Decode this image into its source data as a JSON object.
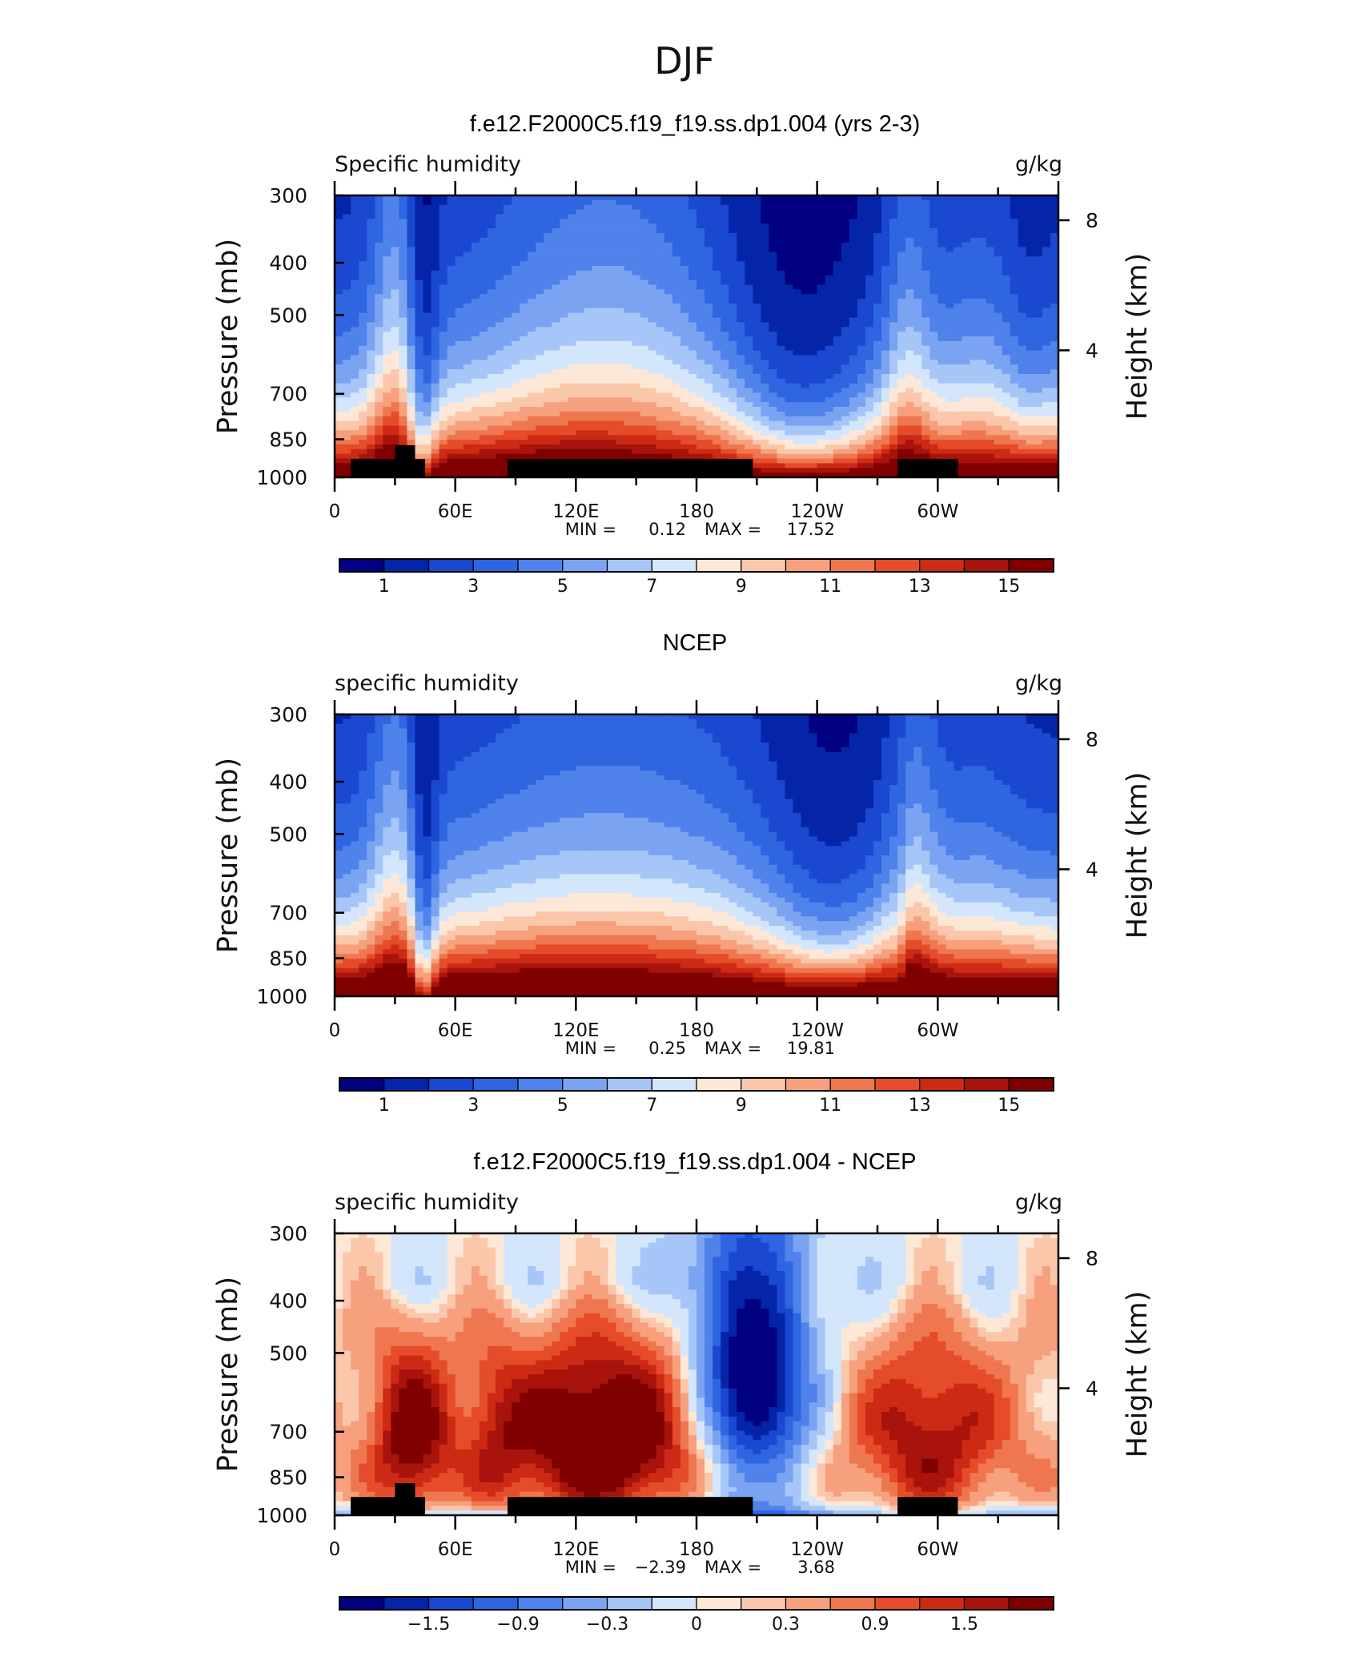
{
  "page_title": "DJF",
  "chart_data": [
    {
      "type": "heatmap",
      "title": "f.e12.F2000C5.f19_f19.ss.dp1.004 (yrs 2-3)",
      "subtitle_left": "Specific humidity",
      "units": "g/kg",
      "ylabel_left": "Pressure (mb)",
      "ylabel_right": "Height (km)",
      "pressure_ticks": [
        "300",
        "400",
        "500",
        "700",
        "850",
        "1000"
      ],
      "height_ticks": [
        "8",
        "4"
      ],
      "lon_ticks": [
        "0",
        "60E",
        "120E",
        "180",
        "120W",
        "60W"
      ],
      "stats": {
        "min_label": "MIN =",
        "min": "0.12",
        "max_label": "MAX =",
        "max": "17.52"
      },
      "colorbar_labels": [
        "1",
        "3",
        "5",
        "7",
        "9",
        "11",
        "13",
        "15"
      ],
      "palette": [
        "#000080",
        "#0425a8",
        "#1a48d0",
        "#2f65e0",
        "#4f82ea",
        "#7aa4f2",
        "#a6c6f8",
        "#d4e6fb",
        "#fde8d8",
        "#fbc7ab",
        "#f6a07e",
        "#ef7750",
        "#e54c2a",
        "#cc2a14",
        "#a8130c",
        "#800000"
      ],
      "levels": [
        1,
        2,
        3,
        4,
        5,
        6,
        7,
        8,
        9,
        10,
        11,
        12,
        13,
        14,
        15
      ],
      "field": "model",
      "topography": true
    },
    {
      "type": "heatmap",
      "title": "NCEP",
      "subtitle_left": "specific humidity",
      "units": "g/kg",
      "ylabel_left": "Pressure (mb)",
      "ylabel_right": "Height (km)",
      "pressure_ticks": [
        "300",
        "400",
        "500",
        "700",
        "850",
        "1000"
      ],
      "height_ticks": [
        "8",
        "4"
      ],
      "lon_ticks": [
        "0",
        "60E",
        "120E",
        "180",
        "120W",
        "60W"
      ],
      "stats": {
        "min_label": "MIN =",
        "min": "0.25",
        "max_label": "MAX =",
        "max": "19.81"
      },
      "colorbar_labels": [
        "1",
        "3",
        "5",
        "7",
        "9",
        "11",
        "13",
        "15"
      ],
      "palette": [
        "#000080",
        "#0425a8",
        "#1a48d0",
        "#2f65e0",
        "#4f82ea",
        "#7aa4f2",
        "#a6c6f8",
        "#d4e6fb",
        "#fde8d8",
        "#fbc7ab",
        "#f6a07e",
        "#ef7750",
        "#e54c2a",
        "#cc2a14",
        "#a8130c",
        "#800000"
      ],
      "levels": [
        1,
        2,
        3,
        4,
        5,
        6,
        7,
        8,
        9,
        10,
        11,
        12,
        13,
        14,
        15
      ],
      "field": "obs",
      "topography": false
    },
    {
      "type": "heatmap",
      "title": "f.e12.F2000C5.f19_f19.ss.dp1.004 - NCEP",
      "subtitle_left": "specific humidity",
      "units": "g/kg",
      "ylabel_left": "Pressure (mb)",
      "ylabel_right": "Height (km)",
      "pressure_ticks": [
        "300",
        "400",
        "500",
        "700",
        "850",
        "1000"
      ],
      "height_ticks": [
        "8",
        "4"
      ],
      "lon_ticks": [
        "0",
        "60E",
        "120E",
        "180",
        "120W",
        "60W"
      ],
      "stats": {
        "min_label": "MIN =",
        "min": "−2.39",
        "max_label": "MAX =",
        "max": "3.68"
      },
      "colorbar_labels": [
        "−1.5",
        "−0.9",
        "−0.3",
        "0",
        "0.3",
        "0.9",
        "1.5"
      ],
      "palette": [
        "#000080",
        "#0425a8",
        "#1a48d0",
        "#2f65e0",
        "#4f82ea",
        "#7aa4f2",
        "#a6c6f8",
        "#d4e6fb",
        "#fde8d8",
        "#fbc7ab",
        "#f6a07e",
        "#ef7750",
        "#e54c2a",
        "#cc2a14",
        "#a8130c",
        "#800000"
      ],
      "levels": [
        -2.1,
        -1.8,
        -1.5,
        -1.2,
        -0.9,
        -0.6,
        -0.3,
        0,
        0.15,
        0.3,
        0.6,
        0.9,
        1.2,
        1.5,
        1.8
      ],
      "field": "diff",
      "topography": true
    }
  ]
}
